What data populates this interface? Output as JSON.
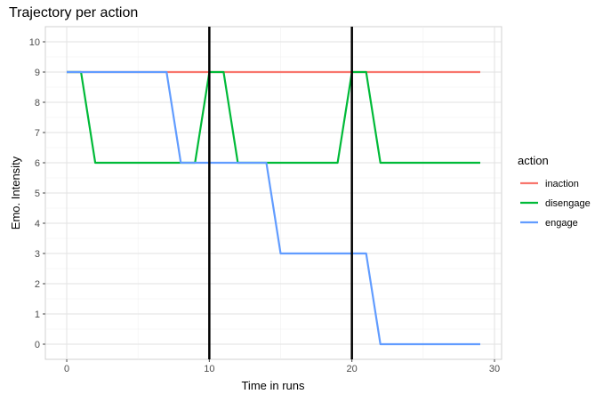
{
  "chart_data": {
    "type": "line",
    "title": "Trajectory per action",
    "xlabel": "Time in runs",
    "ylabel": "Emo. Intensity",
    "xlim": [
      -1.5,
      30.5
    ],
    "ylim": [
      -0.5,
      10.5
    ],
    "x_ticks": [
      "0",
      "10",
      "20",
      "30"
    ],
    "y_ticks": [
      "0",
      "1",
      "2",
      "3",
      "4",
      "5",
      "6",
      "7",
      "8",
      "9",
      "10"
    ],
    "grid": true,
    "legend": {
      "title": "action",
      "position": "right"
    },
    "vlines": [
      10,
      20
    ],
    "series": [
      {
        "name": "inaction",
        "color": "#F8766D",
        "x": [
          0,
          1,
          2,
          3,
          4,
          5,
          6,
          7,
          8,
          9,
          10,
          11,
          12,
          13,
          14,
          15,
          16,
          17,
          18,
          19,
          20,
          21,
          22,
          23,
          24,
          25,
          26,
          27,
          28,
          29
        ],
        "y": [
          9,
          9,
          9,
          9,
          9,
          9,
          9,
          9,
          9,
          9,
          9,
          9,
          9,
          9,
          9,
          9,
          9,
          9,
          9,
          9,
          9,
          9,
          9,
          9,
          9,
          9,
          9,
          9,
          9,
          9
        ]
      },
      {
        "name": "disengage",
        "color": "#00BA38",
        "x": [
          0,
          1,
          2,
          3,
          4,
          5,
          6,
          7,
          8,
          9,
          10,
          11,
          12,
          13,
          14,
          15,
          16,
          17,
          18,
          19,
          20,
          21,
          22,
          23,
          24,
          25,
          26,
          27,
          28,
          29
        ],
        "y": [
          9,
          9,
          6,
          6,
          6,
          6,
          6,
          6,
          6,
          6,
          9,
          9,
          6,
          6,
          6,
          6,
          6,
          6,
          6,
          6,
          9,
          9,
          6,
          6,
          6,
          6,
          6,
          6,
          6,
          6
        ]
      },
      {
        "name": "engage",
        "color": "#619CFF",
        "x": [
          0,
          1,
          2,
          3,
          4,
          5,
          6,
          7,
          8,
          9,
          10,
          11,
          12,
          13,
          14,
          15,
          16,
          17,
          18,
          19,
          20,
          21,
          22,
          23,
          24,
          25,
          26,
          27,
          28,
          29
        ],
        "y": [
          9,
          9,
          9,
          9,
          9,
          9,
          9,
          9,
          6,
          6,
          6,
          6,
          6,
          6,
          6,
          3,
          3,
          3,
          3,
          3,
          3,
          3,
          0,
          0,
          0,
          0,
          0,
          0,
          0,
          0
        ]
      }
    ]
  }
}
